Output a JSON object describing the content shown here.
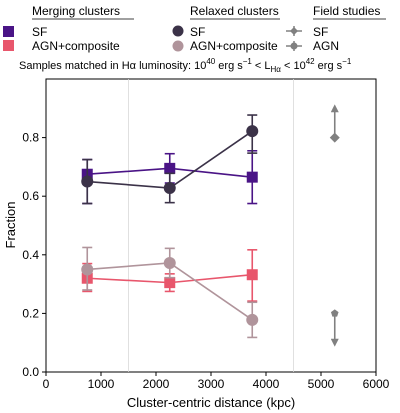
{
  "chart_data": {
    "type": "line",
    "subtitle": {
      "prefix": "Samples matched in Hα luminosity: 10",
      "exp1": "40",
      "mid": " erg s",
      "neg": "−1",
      "lt": " < L",
      "sub": "Hα",
      "lt2": " < 10",
      "exp2": "42",
      "mid2": " erg s",
      "neg2": "−1"
    },
    "xlabel": "Cluster-centric distance (kpc)",
    "ylabel": "Fraction",
    "xlim": [
      0,
      6000
    ],
    "ylim": [
      0,
      1.0
    ],
    "x_ticks": [
      0,
      1000,
      2000,
      3000,
      4000,
      5000,
      6000
    ],
    "y_ticks": [
      0.0,
      0.2,
      0.4,
      0.6,
      0.8
    ],
    "vlines": [
      1500,
      4500
    ],
    "legend_groups": [
      {
        "title": "Merging clusters",
        "entries": [
          {
            "label": "SF",
            "series": "merging_sf"
          },
          {
            "label": "AGN+composite",
            "series": "merging_agn"
          }
        ]
      },
      {
        "title": "Relaxed clusters",
        "entries": [
          {
            "label": "SF",
            "series": "relaxed_sf"
          },
          {
            "label": "AGN+composite",
            "series": "relaxed_agn"
          }
        ]
      },
      {
        "title": "Field studies",
        "entries": [
          {
            "label": "SF",
            "series": "field_sf"
          },
          {
            "label": "AGN",
            "series": "field_agn"
          }
        ]
      }
    ],
    "series": [
      {
        "key": "merging_sf",
        "marker": "square",
        "color": "#4a1486",
        "x": [
          750,
          2250,
          3750
        ],
        "y": [
          0.675,
          0.695,
          0.665
        ],
        "err_low": [
          0.1,
          0.05,
          0.09
        ],
        "err_high": [
          0.05,
          0.05,
          0.09
        ],
        "line": true
      },
      {
        "key": "relaxed_sf",
        "marker": "circle",
        "color": "#3b3248",
        "x": [
          750,
          2250,
          3750
        ],
        "y": [
          0.65,
          0.628,
          0.822
        ],
        "err_low": [
          0.075,
          0.05,
          0.075
        ],
        "err_high": [
          0.075,
          0.05,
          0.055
        ],
        "line": true
      },
      {
        "key": "merging_agn",
        "marker": "square",
        "color": "#e8566c",
        "x": [
          750,
          2250,
          3750
        ],
        "y": [
          0.32,
          0.305,
          0.332
        ],
        "err_low": [
          0.045,
          0.03,
          0.09
        ],
        "err_high": [
          0.05,
          0.03,
          0.085
        ],
        "line": true
      },
      {
        "key": "relaxed_agn",
        "marker": "circle",
        "color": "#b0949b",
        "x": [
          750,
          2250,
          3750
        ],
        "y": [
          0.35,
          0.372,
          0.178
        ],
        "err_low": [
          0.07,
          0.05,
          0.06
        ],
        "err_high": [
          0.075,
          0.05,
          0.06
        ],
        "line": true
      },
      {
        "key": "field_sf",
        "marker": "diamond",
        "color": "#808080",
        "x": [
          5250
        ],
        "y": [
          0.8
        ],
        "arrow": "up",
        "arrow_to": 0.9,
        "line": false
      },
      {
        "key": "field_agn",
        "marker": "pentagon",
        "color": "#808080",
        "x": [
          5250
        ],
        "y": [
          0.2
        ],
        "arrow": "down",
        "arrow_to": 0.1,
        "line": false
      }
    ]
  }
}
